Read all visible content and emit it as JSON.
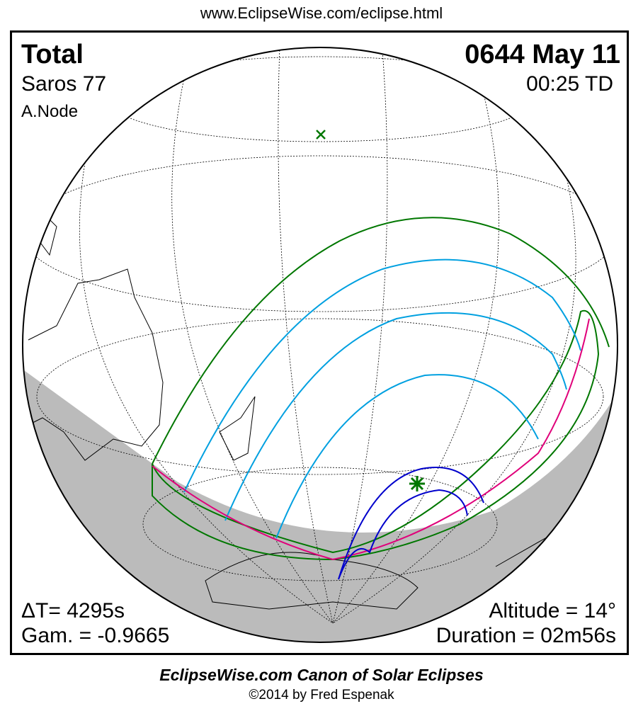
{
  "header": {
    "url": "www.EclipseWise.com/eclipse.html"
  },
  "eclipse": {
    "type": "Total",
    "date": "0644 May 11",
    "saros": "Saros  77",
    "time": "00:25 TD",
    "node": "A.Node",
    "delta_t": "ΔT=   4295s",
    "gamma": "Gam. = -0.9665",
    "altitude": "Altitude = 14°",
    "duration": "Duration = 02m56s"
  },
  "map": {
    "colors": {
      "penumbra_limits": "#007700",
      "magnitude_lines": "#00a0e0",
      "sunrise_sunset": "#e0007a",
      "umbra_path": "#0000cc",
      "night": "#bbbbbb",
      "land_outline": "#000000"
    },
    "icons": [
      "subsolar-point-x-icon",
      "greatest-eclipse-star-icon"
    ]
  },
  "footer": {
    "title": "EclipseWise.com Canon of Solar Eclipses",
    "copyright": "©2014 by Fred Espenak"
  }
}
